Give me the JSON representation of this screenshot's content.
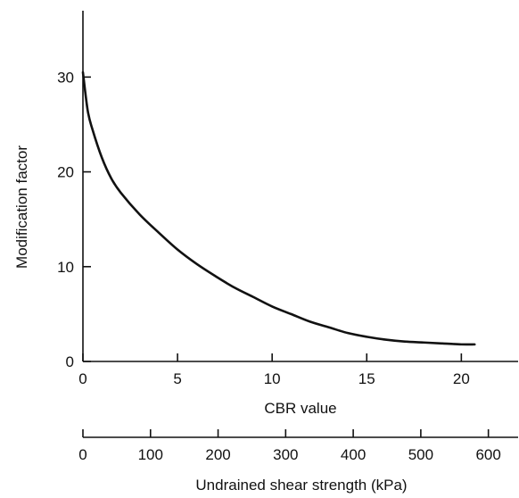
{
  "chart_data": {
    "type": "line",
    "title": "",
    "xlabel": "CBR value",
    "ylabel": "Modification factor",
    "secondary_xlabel": "Undrained shear strength (kPa)",
    "xlim": [
      0,
      23
    ],
    "ylim": [
      0,
      37
    ],
    "secondary_xlim": [
      0,
      644
    ],
    "x_ticks": [
      "0",
      "5",
      "10",
      "15",
      "20"
    ],
    "x_tick_values": [
      0,
      5,
      10,
      15,
      20
    ],
    "y_ticks": [
      "0",
      "10",
      "20",
      "30"
    ],
    "y_tick_values": [
      0,
      10,
      20,
      30
    ],
    "secondary_x_ticks": [
      "0",
      "100",
      "200",
      "300",
      "400",
      "500",
      "600"
    ],
    "secondary_x_tick_values": [
      0,
      100,
      200,
      300,
      400,
      500,
      600
    ],
    "grid": false,
    "series": [
      {
        "x": [
          0,
          0.25,
          0.5,
          1,
          1.5,
          2,
          3,
          4,
          5,
          6,
          7,
          8,
          9,
          10,
          11,
          12,
          13,
          14,
          15,
          16,
          17,
          18,
          19,
          20,
          20.7
        ],
        "y": [
          30.5,
          26.5,
          24.5,
          21.5,
          19.3,
          17.8,
          15.5,
          13.6,
          11.8,
          10.3,
          9.0,
          7.8,
          6.8,
          5.8,
          5.0,
          4.2,
          3.6,
          3.0,
          2.6,
          2.3,
          2.1,
          2.0,
          1.9,
          1.8,
          1.8
        ]
      }
    ],
    "colors": {
      "line": "#111111",
      "axis": "#111111"
    }
  }
}
